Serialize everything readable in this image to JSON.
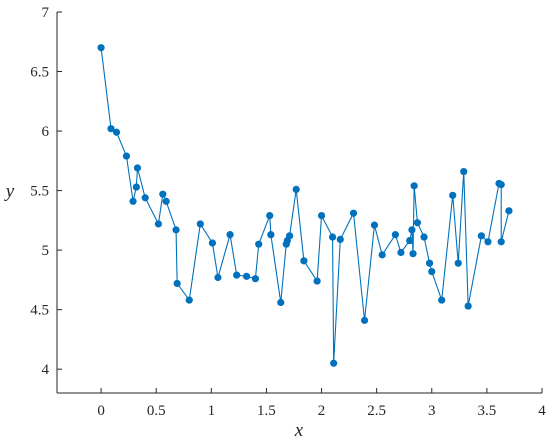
{
  "chart_data": {
    "type": "line",
    "xlabel": "x",
    "ylabel": "y",
    "xlim": [
      -0.4,
      4
    ],
    "ylim": [
      3.8,
      7
    ],
    "xticks": [
      0,
      0.5,
      1,
      1.5,
      2,
      2.5,
      3,
      3.5,
      4
    ],
    "xtick_labels": [
      "0",
      "0.5",
      "1",
      "1.5",
      "2",
      "2.5",
      "3",
      "3.5",
      "4"
    ],
    "yticks": [
      4,
      4.5,
      5,
      5.5,
      6,
      6.5,
      7
    ],
    "ytick_labels": [
      "4",
      "4.5",
      "5",
      "5.5",
      "6",
      "6.5",
      "7"
    ],
    "grid": false,
    "color": "#0072BD",
    "markers": "filled-circle",
    "series": [
      {
        "points": [
          [
            0.0,
            6.7
          ],
          [
            0.09,
            6.02
          ],
          [
            0.14,
            5.99
          ],
          [
            0.23,
            5.79
          ],
          [
            0.29,
            5.41
          ],
          [
            0.32,
            5.53
          ],
          [
            0.33,
            5.69
          ],
          [
            0.4,
            5.44
          ],
          [
            0.52,
            5.22
          ],
          [
            0.56,
            5.47
          ],
          [
            0.59,
            5.41
          ],
          [
            0.68,
            5.17
          ],
          [
            0.69,
            4.72
          ],
          [
            0.8,
            4.58
          ],
          [
            0.9,
            5.22
          ],
          [
            1.01,
            5.06
          ],
          [
            1.06,
            4.77
          ],
          [
            1.17,
            5.13
          ],
          [
            1.23,
            4.79
          ],
          [
            1.32,
            4.78
          ],
          [
            1.4,
            4.76
          ],
          [
            1.43,
            5.05
          ],
          [
            1.53,
            5.29
          ],
          [
            1.54,
            5.13
          ],
          [
            1.63,
            4.56
          ],
          [
            1.68,
            5.05
          ],
          [
            1.69,
            5.08
          ],
          [
            1.71,
            5.12
          ],
          [
            1.77,
            5.51
          ],
          [
            1.84,
            4.91
          ],
          [
            1.96,
            4.74
          ],
          [
            2.0,
            5.29
          ],
          [
            2.1,
            5.11
          ],
          [
            2.11,
            4.05
          ],
          [
            2.17,
            5.09
          ],
          [
            2.29,
            5.31
          ],
          [
            2.39,
            4.41
          ],
          [
            2.48,
            5.21
          ],
          [
            2.55,
            4.96
          ],
          [
            2.67,
            5.13
          ],
          [
            2.72,
            4.98
          ],
          [
            2.8,
            5.08
          ],
          [
            2.82,
            5.17
          ],
          [
            2.83,
            4.97
          ],
          [
            2.84,
            5.54
          ],
          [
            2.87,
            5.23
          ],
          [
            2.93,
            5.11
          ],
          [
            2.98,
            4.89
          ],
          [
            3.0,
            4.82
          ],
          [
            3.09,
            4.58
          ],
          [
            3.19,
            5.46
          ],
          [
            3.24,
            4.89
          ],
          [
            3.29,
            5.66
          ],
          [
            3.33,
            4.53
          ],
          [
            3.45,
            5.12
          ],
          [
            3.51,
            5.07
          ],
          [
            3.61,
            5.56
          ],
          [
            3.63,
            5.55
          ],
          [
            3.63,
            5.07
          ],
          [
            3.7,
            5.33
          ]
        ]
      }
    ]
  }
}
